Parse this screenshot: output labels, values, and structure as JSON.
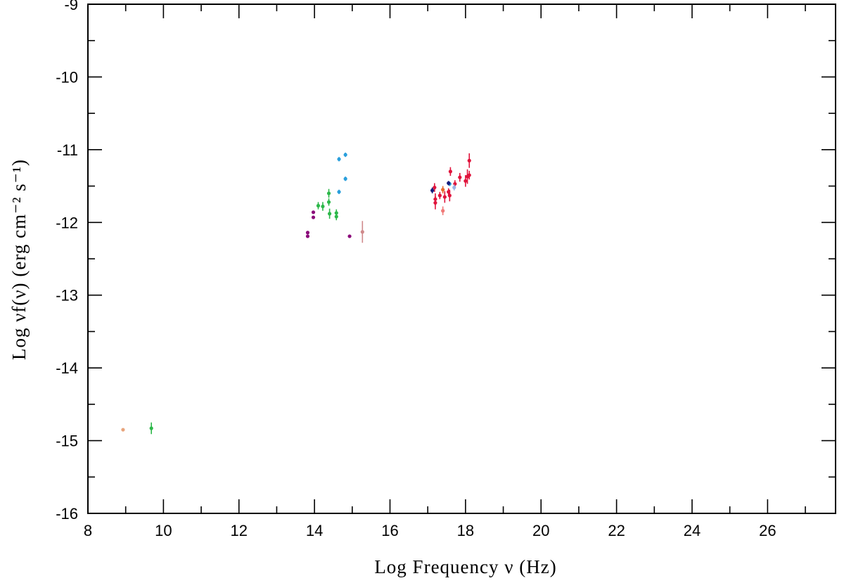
{
  "chart_data": {
    "type": "scatter",
    "title": "",
    "xlabel": "Log Frequency ν (Hz)",
    "ylabel": "Log νf(ν) (erg cm⁻² s⁻¹)",
    "xlim": [
      8,
      27.8
    ],
    "ylim": [
      -16,
      -9
    ],
    "grid": false,
    "legend": "none",
    "x_major_ticks": [
      "8",
      "10",
      "12",
      "14",
      "16",
      "18",
      "20",
      "22",
      "24",
      "26"
    ],
    "y_major_ticks": [
      "-9",
      "-10",
      "-11",
      "-12",
      "-13",
      "-14",
      "-15",
      "-16"
    ],
    "series": [
      {
        "color": "#e8a47c",
        "points": [
          {
            "x": 8.93,
            "y": -14.85,
            "yerr": 0
          }
        ]
      },
      {
        "color": "#2db84a",
        "points": [
          {
            "x": 9.68,
            "y": -14.83,
            "yerr": 0.08
          },
          {
            "x": 14.1,
            "y": -11.77,
            "yerr": 0.05
          },
          {
            "x": 14.22,
            "y": -11.78,
            "yerr": 0.06
          },
          {
            "x": 14.38,
            "y": -11.6,
            "yerr": 0.06
          },
          {
            "x": 14.38,
            "y": -11.72,
            "yerr": 0.05
          },
          {
            "x": 14.4,
            "y": -11.88,
            "yerr": 0.07
          },
          {
            "x": 14.58,
            "y": -11.87,
            "yerr": 0.05
          },
          {
            "x": 14.58,
            "y": -11.92,
            "yerr": 0.05
          }
        ]
      },
      {
        "color": "#8b0a7a",
        "points": [
          {
            "x": 13.82,
            "y": -12.14,
            "yerr": 0
          },
          {
            "x": 13.82,
            "y": -12.19,
            "yerr": 0
          },
          {
            "x": 13.97,
            "y": -11.86,
            "yerr": 0
          },
          {
            "x": 13.97,
            "y": -11.93,
            "yerr": 0
          },
          {
            "x": 14.93,
            "y": -12.19,
            "yerr": 0
          }
        ]
      },
      {
        "color": "#2a9fdc",
        "points": [
          {
            "x": 14.65,
            "y": -11.13,
            "yerr": 0.03
          },
          {
            "x": 14.82,
            "y": -11.07,
            "yerr": 0.03
          },
          {
            "x": 14.65,
            "y": -11.58,
            "yerr": 0.03
          },
          {
            "x": 14.82,
            "y": -11.4,
            "yerr": 0.03
          },
          {
            "x": 17.58,
            "y": -11.47,
            "yerr": 0.03
          }
        ]
      },
      {
        "color": "#d08a8c",
        "points": [
          {
            "x": 15.27,
            "y": -12.13,
            "yerr": 0.15
          }
        ]
      },
      {
        "color": "#e0143c",
        "points": [
          {
            "x": 17.18,
            "y": -11.52,
            "yerr": 0.06
          },
          {
            "x": 17.2,
            "y": -11.68,
            "yerr": 0.08
          },
          {
            "x": 17.2,
            "y": -11.73,
            "yerr": 0.09
          },
          {
            "x": 17.32,
            "y": -11.63,
            "yerr": 0.05
          },
          {
            "x": 17.45,
            "y": -11.65,
            "yerr": 0.08
          },
          {
            "x": 17.55,
            "y": -11.58,
            "yerr": 0.05
          },
          {
            "x": 17.58,
            "y": -11.63,
            "yerr": 0.08
          },
          {
            "x": 17.6,
            "y": -11.3,
            "yerr": 0.06
          },
          {
            "x": 17.72,
            "y": -11.47,
            "yerr": 0.05
          },
          {
            "x": 17.85,
            "y": -11.38,
            "yerr": 0.06
          },
          {
            "x": 18.0,
            "y": -11.43,
            "yerr": 0.08
          },
          {
            "x": 18.05,
            "y": -11.37,
            "yerr": 0.1
          },
          {
            "x": 18.1,
            "y": -11.35,
            "yerr": 0.06
          },
          {
            "x": 18.1,
            "y": -11.15,
            "yerr": 0.1
          }
        ]
      },
      {
        "color": "#e86a2c",
        "points": [
          {
            "x": 17.4,
            "y": -11.55,
            "yerr": 0.05
          }
        ]
      },
      {
        "color": "#f07a78",
        "points": [
          {
            "x": 17.4,
            "y": -11.84,
            "yerr": 0.06
          }
        ]
      },
      {
        "color": "#141c7c",
        "points": [
          {
            "x": 17.12,
            "y": -11.56,
            "yerr": 0.04
          },
          {
            "x": 17.55,
            "y": -11.46,
            "yerr": 0.03
          }
        ]
      },
      {
        "color": "#9ab4e8",
        "points": [
          {
            "x": 17.7,
            "y": -11.52,
            "yerr": 0.04
          }
        ]
      }
    ]
  }
}
